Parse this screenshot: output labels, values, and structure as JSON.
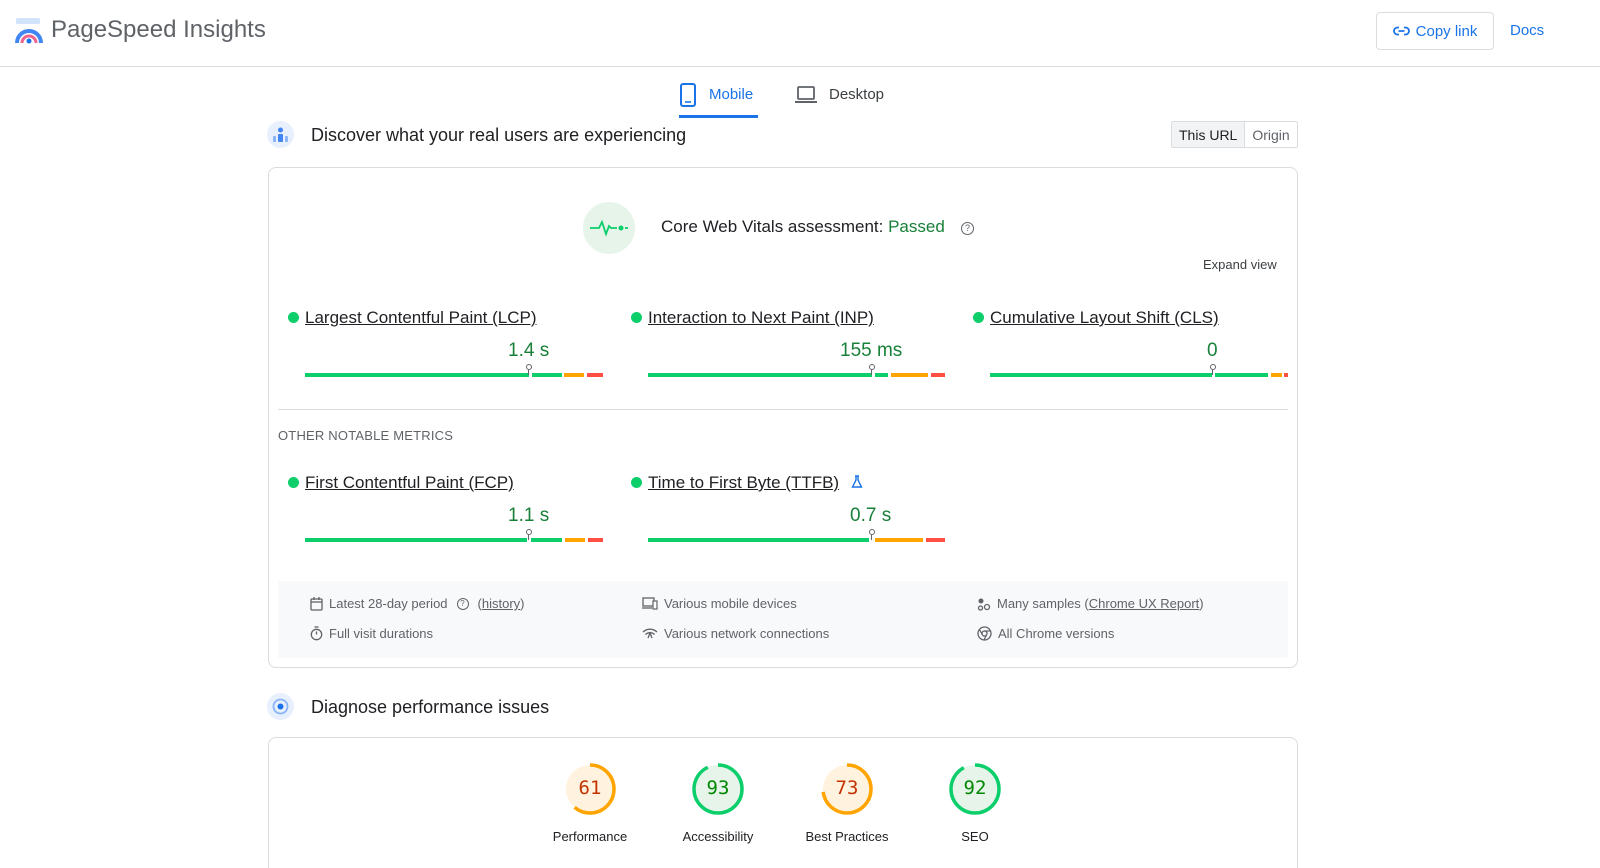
{
  "header": {
    "app_title": "PageSpeed Insights",
    "copy_link_label": "Copy link",
    "docs_label": "Docs"
  },
  "tabs": [
    {
      "label": "Mobile",
      "icon": "phone-icon",
      "selected": true
    },
    {
      "label": "Desktop",
      "icon": "laptop-icon",
      "selected": false
    }
  ],
  "field": {
    "title": "Discover what your real users are experiencing",
    "toggle": [
      "This URL",
      "Origin"
    ],
    "cwv_prefix": "Core Web Vitals assessment:",
    "cwv_status": "Passed",
    "expand_label": "Expand view",
    "metrics": [
      {
        "name": "Largest Contentful Paint (LCP)",
        "value": "1.4 s",
        "status_color": "#0cce6b"
      },
      {
        "name": "Interaction to Next Paint (INP)",
        "value": "155 ms",
        "status_color": "#0cce6b"
      },
      {
        "name": "Cumulative Layout Shift (CLS)",
        "value": "0",
        "status_color": "#0cce6b"
      }
    ],
    "other_label": "OTHER NOTABLE METRICS",
    "other_metrics": [
      {
        "name": "First Contentful Paint (FCP)",
        "value": "1.1 s",
        "status_color": "#0cce6b"
      },
      {
        "name": "Time to First Byte (TTFB)",
        "value": "0.7 s",
        "status_color": "#0cce6b",
        "badge_icon": "flask-icon"
      }
    ],
    "meta": {
      "period": "Latest 28-day period",
      "history": "history",
      "devices": "Various mobile devices",
      "samples_prefix": "Many samples (",
      "samples_link": "Chrome UX Report",
      "samples_suffix": ")",
      "durations": "Full visit durations",
      "network": "Various network connections",
      "versions": "All Chrome versions"
    }
  },
  "lab": {
    "title": "Diagnose performance issues",
    "scores": [
      {
        "label": "Performance",
        "score": 61,
        "color": "#c33300",
        "ring": "#ffa400",
        "bg": "#fff3e0"
      },
      {
        "label": "Accessibility",
        "score": 93,
        "color": "#008800",
        "ring": "#0cce6b",
        "bg": "#e6f4ea"
      },
      {
        "label": "Best Practices",
        "score": 73,
        "color": "#c33300",
        "ring": "#ffa400",
        "bg": "#fff3e0"
      },
      {
        "label": "SEO",
        "score": 92,
        "color": "#008800",
        "ring": "#0cce6b",
        "bg": "#e6f4ea"
      }
    ]
  },
  "colors": {
    "accent": "#1a73e8",
    "good": "#0cce6b",
    "average": "#ffa400",
    "poor": "#ff4e42"
  }
}
